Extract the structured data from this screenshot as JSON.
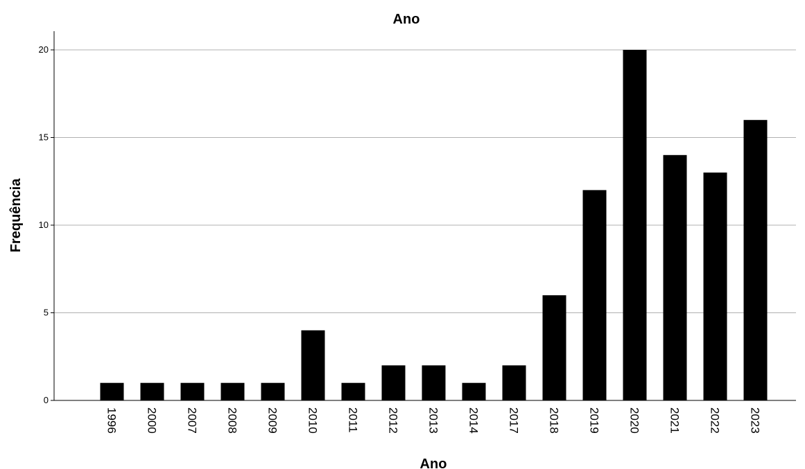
{
  "chart_data": {
    "type": "bar",
    "title": "Ano",
    "xlabel": "Ano",
    "ylabel": "Frequência",
    "categories": [
      "1996",
      "2000",
      "2007",
      "2008",
      "2009",
      "2010",
      "2011",
      "2012",
      "2013",
      "2014",
      "2017",
      "2018",
      "2019",
      "2020",
      "2021",
      "2022",
      "2023"
    ],
    "values": [
      1,
      1,
      1,
      1,
      1,
      4,
      1,
      2,
      2,
      1,
      2,
      6,
      12,
      20,
      14,
      13,
      16
    ],
    "ylim": [
      0,
      21
    ],
    "yticks": [
      "0",
      "5",
      "10",
      "15",
      "20"
    ],
    "grid": "horizontal",
    "bar_color": "#000000",
    "grid_color": "#b0b0b0"
  }
}
